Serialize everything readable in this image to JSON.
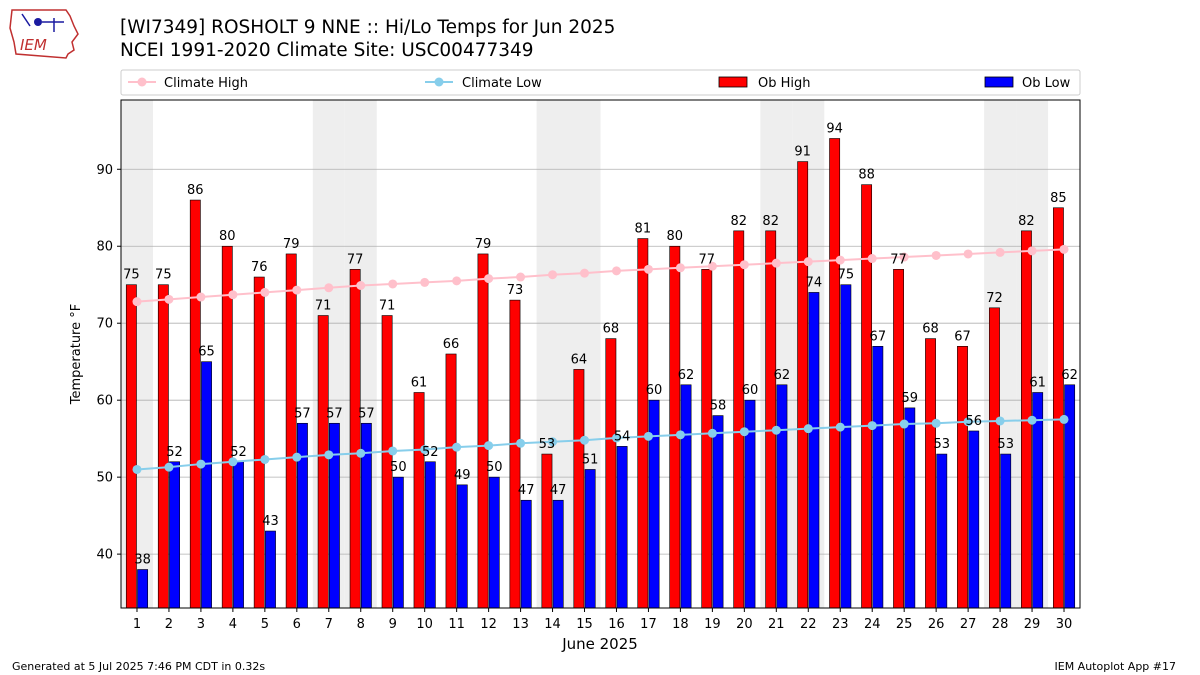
{
  "header": {
    "logo_text": "IEM",
    "title_line1": "[WI7349] ROSHOLT 9 NNE :: Hi/Lo Temps for Jun 2025",
    "title_line2": "NCEI 1991-2020 Climate Site: USC00477349"
  },
  "footer": {
    "generated": "Generated at 5 Jul 2025 7:46 PM CDT in 0.32s",
    "app": "IEM Autoplot App #17"
  },
  "colors": {
    "climate_high": "#ffc0cb",
    "climate_low": "#87ceeb",
    "ob_high": "#ff0000",
    "ob_low": "#0000ff",
    "weekend_shade": "#eeeeee",
    "grid": "#b0b0b0"
  },
  "chart_data": {
    "type": "bar",
    "xlabel": "June 2025",
    "ylabel": "Temperature °F",
    "ylim": [
      33,
      99
    ],
    "yticks": [
      40,
      50,
      60,
      70,
      80,
      90
    ],
    "grid": "horizontal",
    "legend_position": "top",
    "categories": [
      "1",
      "2",
      "3",
      "4",
      "5",
      "6",
      "7",
      "8",
      "9",
      "10",
      "11",
      "12",
      "13",
      "14",
      "15",
      "16",
      "17",
      "18",
      "19",
      "20",
      "21",
      "22",
      "23",
      "24",
      "25",
      "26",
      "27",
      "28",
      "29",
      "30"
    ],
    "shaded_days": [
      1,
      7,
      8,
      14,
      15,
      21,
      22,
      28,
      29
    ],
    "series": [
      {
        "name": "Ob High",
        "kind": "bar",
        "values": [
          75,
          75,
          86,
          80,
          76,
          79,
          71,
          77,
          71,
          61,
          66,
          79,
          73,
          53,
          64,
          68,
          81,
          80,
          77,
          82,
          82,
          91,
          94,
          88,
          77,
          68,
          67,
          72,
          82,
          85
        ]
      },
      {
        "name": "Ob Low",
        "kind": "bar",
        "values": [
          38,
          52,
          65,
          52,
          43,
          57,
          57,
          57,
          50,
          52,
          49,
          50,
          47,
          47,
          51,
          54,
          60,
          62,
          58,
          60,
          62,
          74,
          75,
          67,
          59,
          53,
          56,
          53,
          61,
          62
        ]
      },
      {
        "name": "Climate High",
        "kind": "line",
        "values": [
          72.8,
          73.1,
          73.4,
          73.7,
          74.0,
          74.3,
          74.6,
          74.9,
          75.1,
          75.3,
          75.5,
          75.8,
          76.0,
          76.3,
          76.5,
          76.8,
          77.0,
          77.2,
          77.4,
          77.6,
          77.8,
          78.0,
          78.2,
          78.4,
          78.6,
          78.8,
          79.0,
          79.2,
          79.4,
          79.6
        ]
      },
      {
        "name": "Climate Low",
        "kind": "line",
        "values": [
          51.0,
          51.3,
          51.7,
          52.0,
          52.3,
          52.6,
          52.9,
          53.1,
          53.4,
          53.6,
          53.9,
          54.1,
          54.4,
          54.6,
          54.8,
          55.1,
          55.3,
          55.5,
          55.7,
          55.9,
          56.1,
          56.3,
          56.5,
          56.7,
          56.9,
          57.0,
          57.2,
          57.3,
          57.4,
          57.5
        ]
      }
    ]
  }
}
